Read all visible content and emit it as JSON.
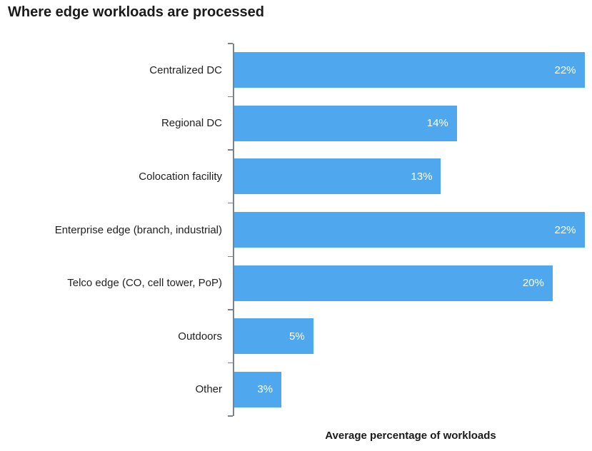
{
  "chart_data": {
    "type": "bar",
    "orientation": "horizontal",
    "title": "Where edge workloads are processed",
    "xlabel": "Average percentage of workloads",
    "ylabel": "",
    "categories": [
      "Centralized DC",
      "Regional DC",
      "Colocation facility",
      "Enterprise edge (branch, industrial)",
      "Telco edge (CO, cell tower, PoP)",
      "Outdoors",
      "Other"
    ],
    "values": [
      22,
      14,
      13,
      22,
      20,
      5,
      3
    ],
    "value_labels": [
      "22%",
      "14%",
      "13%",
      "22%",
      "20%",
      "5%",
      "3%"
    ],
    "xlim": [
      0,
      22.2
    ],
    "grid": false,
    "legend": false,
    "bar_color": "#4FA8EE",
    "value_label_color": "#FFFFFF",
    "axis_color": "#79828E",
    "text_color": "#212121"
  }
}
